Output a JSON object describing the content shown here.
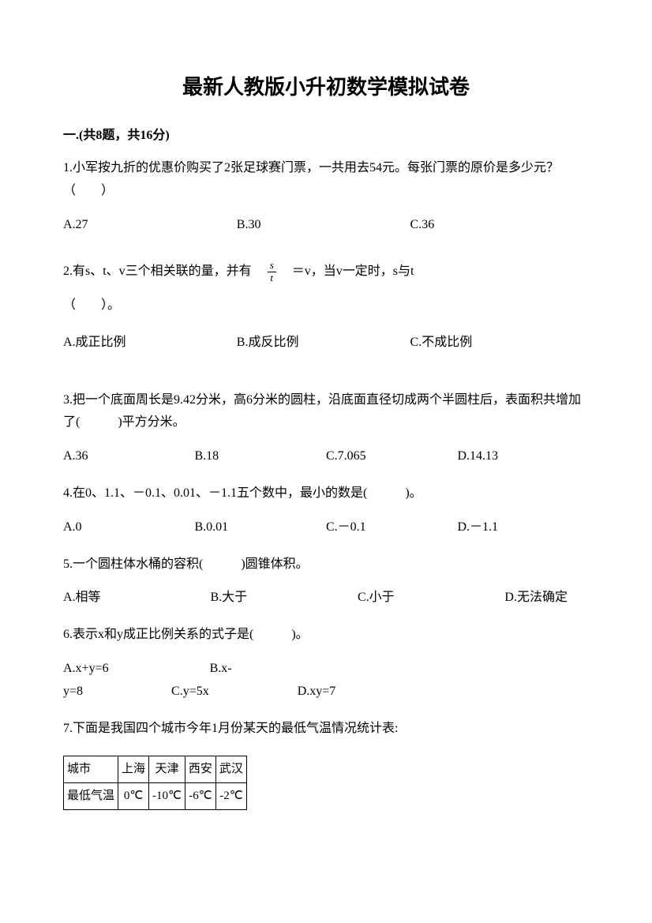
{
  "title": "最新人教版小升初数学模拟试卷",
  "section1": {
    "header": "一.(共8题，共16分)",
    "q1": {
      "text": "1.小军按九折的优惠价购买了2张足球赛门票，一共用去54元。每张门票的原价是多少元？（　　）",
      "optA": "A.27",
      "optB": "B.30",
      "optC": "C.36"
    },
    "q2": {
      "text_before": "2.有s、t、v三个相关联的量，并有　",
      "frac_num": "s",
      "frac_den": "t",
      "text_after": "　＝v，当v一定时，s与t",
      "paren": "（　　）。",
      "optA": "A.成正比例",
      "optB": "B.成反比例",
      "optC": "C.不成比例"
    },
    "q3": {
      "text": "3.把一个底面周长是9.42分米，高6分米的圆柱，沿底面直径切成两个半圆柱后，表面积共增加了(　　　)平方分米。",
      "optA": "A.36",
      "optB": "B.18",
      "optC": "C.7.065",
      "optD": "D.14.13"
    },
    "q4": {
      "text": "4.在0、1.1、－0.1、0.01、－1.1五个数中，最小的数是(　　　)。",
      "optA": "A.0",
      "optB": "B.0.01",
      "optC": "C.－0.1",
      "optD": "D.－1.1"
    },
    "q5": {
      "text": "5.一个圆柱体水桶的容积(　　　)圆锥体积。",
      "optA": "A.相等",
      "optB": "B.大于",
      "optC": "C.小于",
      "optD": "D.无法确定"
    },
    "q6": {
      "text": "6.表示x和y成正比例关系的式子是(　　　)。",
      "line1": "A.x+y=6　　　　　　　　B.x-",
      "line2": "y=8　　　　　　　C.y=5x　　　　　　　D.xy=7"
    },
    "q7": {
      "text": "7.下面是我国四个城市今年1月份某天的最低气温情况统计表:",
      "table": {
        "row1_label": "城市",
        "row1_c1": "上海",
        "row1_c2": "天津",
        "row1_c3": "西安",
        "row1_c4": "武汉",
        "row2_label": "最低气温",
        "row2_c1": "0℃",
        "row2_c2": "-10℃",
        "row2_c3": "-6℃",
        "row2_c4": "-2℃"
      }
    }
  },
  "colors": {
    "background": "#ffffff",
    "text": "#000000",
    "border": "#000000"
  },
  "typography": {
    "title_fontsize": 26,
    "body_fontsize": 16,
    "font_family": "SimSun"
  }
}
